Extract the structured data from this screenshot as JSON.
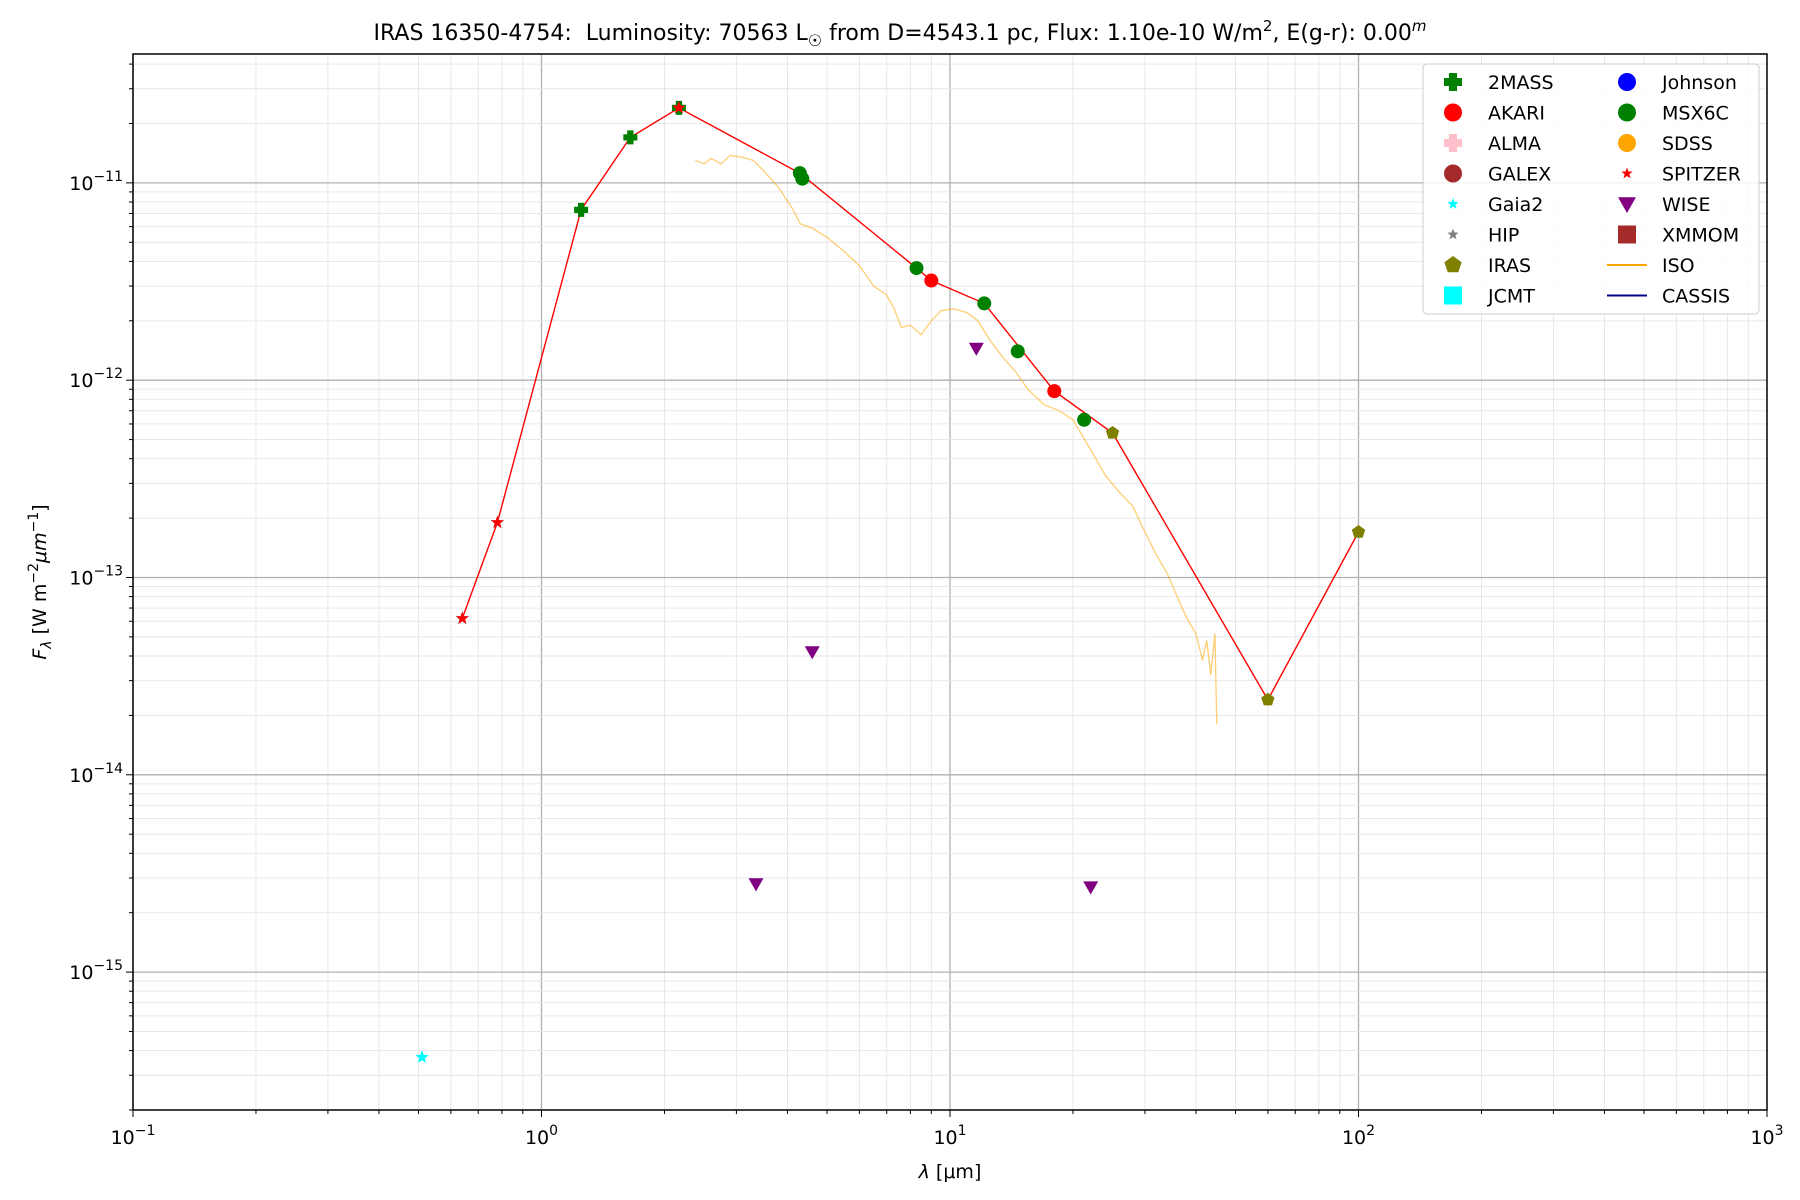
{
  "chart_data": {
    "type": "scatter",
    "title": {
      "object": "IRAS 16350-4754:",
      "lum_label": "Luminosity: 70563 L",
      "sun": "☉",
      "dist": " from D=4543.1 pc, Flux: 1.10e-10 W/m",
      "sup2": "2",
      "ext": ", E(g-r): 0.00",
      "supm": "m"
    },
    "xlabel": {
      "sym": "λ",
      "unit": " [μm]"
    },
    "ylabel": {
      "sym": "F",
      "sub": "λ",
      "pre": " [W m",
      "exp1": "−2",
      "mid": "μm",
      "exp2": "−1",
      "post": "]"
    },
    "xscale": "log",
    "yscale": "log",
    "xlim": [
      0.1,
      1000
    ],
    "ylim": [
      2e-16,
      4.5e-11
    ],
    "grid": true,
    "legend_placement": "top-right",
    "x_ticks": [
      {
        "base": "10",
        "exp": "−1",
        "v": 0.1
      },
      {
        "base": "10",
        "exp": "0",
        "v": 1
      },
      {
        "base": "10",
        "exp": "1",
        "v": 10
      },
      {
        "base": "10",
        "exp": "2",
        "v": 100
      },
      {
        "base": "10",
        "exp": "3",
        "v": 1000
      }
    ],
    "y_ticks": [
      {
        "base": "10",
        "exp": "−15",
        "v": 1e-15
      },
      {
        "base": "10",
        "exp": "−14",
        "v": 1e-14
      },
      {
        "base": "10",
        "exp": "−13",
        "v": 1e-13
      },
      {
        "base": "10",
        "exp": "−12",
        "v": 1e-12
      },
      {
        "base": "10",
        "exp": "−11",
        "v": 1e-11
      }
    ],
    "legend": [
      {
        "label": "2MASS",
        "marker": "plus",
        "color": "#008000"
      },
      {
        "label": "Johnson",
        "marker": "circle",
        "color": "#0000ff"
      },
      {
        "label": "AKARI",
        "marker": "circle",
        "color": "#ff0000"
      },
      {
        "label": "MSX6C",
        "marker": "circle",
        "color": "#008000"
      },
      {
        "label": "ALMA",
        "marker": "plus",
        "color": "#ffc0cb"
      },
      {
        "label": "SDSS",
        "marker": "circle",
        "color": "#ffa500"
      },
      {
        "label": "GALEX",
        "marker": "circle",
        "color": "#a52a2a"
      },
      {
        "label": "SPITZER",
        "marker": "star",
        "color": "#ff0000"
      },
      {
        "label": "Gaia2",
        "marker": "star",
        "color": "#00ffff"
      },
      {
        "label": "WISE",
        "marker": "triangle",
        "color": "#800080"
      },
      {
        "label": "HIP",
        "marker": "star",
        "color": "#808080"
      },
      {
        "label": "XMMOM",
        "marker": "square",
        "color": "#a52a2a"
      },
      {
        "label": "IRAS",
        "marker": "pentagon",
        "color": "#808000"
      },
      {
        "label": "ISO",
        "marker": "line",
        "color": "#ffa500"
      },
      {
        "label": "JCMT",
        "marker": "square",
        "color": "#00ffff"
      },
      {
        "label": "CASSIS",
        "marker": "line",
        "color": "#00008b"
      }
    ],
    "sed_line": {
      "color": "#ff0000",
      "points": [
        [
          0.64,
          6.2e-14
        ],
        [
          0.78,
          1.9e-13
        ],
        [
          1.25,
          7.3e-12
        ],
        [
          1.65,
          1.7e-11
        ],
        [
          2.17,
          2.4e-11
        ],
        [
          4.29,
          1.12e-11
        ],
        [
          8.28,
          3.7e-12
        ],
        [
          9.0,
          3.2e-12
        ],
        [
          12.13,
          2.45e-12
        ],
        [
          18.0,
          8.8e-13
        ],
        [
          25.0,
          5.4e-13
        ],
        [
          60.0,
          2.4e-14
        ],
        [
          100.0,
          1.7e-13
        ]
      ]
    },
    "series": [
      {
        "name": "2MASS",
        "marker": "plus",
        "color": "#008000",
        "points": [
          [
            1.25,
            7.3e-12
          ],
          [
            1.65,
            1.7e-11
          ],
          [
            2.17,
            2.4e-11
          ]
        ]
      },
      {
        "name": "AKARI",
        "marker": "circle",
        "color": "#ff0000",
        "points": [
          [
            9.0,
            3.2e-12
          ],
          [
            18.0,
            8.8e-13
          ]
        ]
      },
      {
        "name": "MSX6C",
        "marker": "circle",
        "color": "#008000",
        "points": [
          [
            4.29,
            1.12e-11
          ],
          [
            4.35,
            1.05e-11
          ],
          [
            8.28,
            3.7e-12
          ],
          [
            12.13,
            2.45e-12
          ],
          [
            14.65,
            1.4e-12
          ],
          [
            21.3,
            6.3e-13
          ]
        ]
      },
      {
        "name": "Gaia2",
        "marker": "star",
        "color": "#00ffff",
        "points": [
          [
            0.51,
            3.7e-16
          ],
          [
            0.64,
            6.2e-14
          ],
          [
            0.78,
            1.9e-13
          ]
        ]
      },
      {
        "name": "SPITZER",
        "marker": "star",
        "color": "#ff0000",
        "points": [
          [
            0.64,
            6.2e-14
          ],
          [
            0.78,
            1.9e-13
          ],
          [
            2.17,
            2.4e-11
          ]
        ]
      },
      {
        "name": "WISE",
        "marker": "triangle",
        "color": "#800080",
        "points": [
          [
            3.35,
            2.8e-15
          ],
          [
            4.6,
            4.2e-14
          ],
          [
            11.6,
            1.45e-12
          ],
          [
            22.1,
            2.7e-15
          ]
        ]
      },
      {
        "name": "IRAS",
        "marker": "pentagon",
        "color": "#808000",
        "points": [
          [
            25.0,
            5.4e-13
          ],
          [
            60.0,
            2.4e-14
          ],
          [
            100.0,
            1.7e-13
          ]
        ]
      }
    ],
    "iso_spectrum": {
      "color": "#ffa500",
      "points": [
        [
          2.38,
          1.3e-11
        ],
        [
          2.5,
          1.25e-11
        ],
        [
          2.6,
          1.33e-11
        ],
        [
          2.75,
          1.25e-11
        ],
        [
          2.9,
          1.38e-11
        ],
        [
          3.1,
          1.35e-11
        ],
        [
          3.3,
          1.3e-11
        ],
        [
          3.5,
          1.15e-11
        ],
        [
          3.8,
          9.5e-12
        ],
        [
          4.1,
          7.5e-12
        ],
        [
          4.3,
          6.2e-12
        ],
        [
          4.6,
          5.9e-12
        ],
        [
          5.0,
          5.3e-12
        ],
        [
          5.5,
          4.5e-12
        ],
        [
          6.0,
          3.8e-12
        ],
        [
          6.5,
          3e-12
        ],
        [
          7.0,
          2.7e-12
        ],
        [
          7.3,
          2.3e-12
        ],
        [
          7.6,
          1.85e-12
        ],
        [
          8.0,
          1.9e-12
        ],
        [
          8.5,
          1.7e-12
        ],
        [
          9.0,
          2e-12
        ],
        [
          9.5,
          2.25e-12
        ],
        [
          10.2,
          2.3e-12
        ],
        [
          11.0,
          2.2e-12
        ],
        [
          11.7,
          2e-12
        ],
        [
          12.5,
          1.6e-12
        ],
        [
          13.5,
          1.3e-12
        ],
        [
          14.5,
          1.1e-12
        ],
        [
          15.5,
          9e-13
        ],
        [
          17.0,
          7.5e-13
        ],
        [
          18.5,
          7e-13
        ],
        [
          20.0,
          6.3e-13
        ],
        [
          22.0,
          4.5e-13
        ],
        [
          24.0,
          3.3e-13
        ],
        [
          26.0,
          2.7e-13
        ],
        [
          28.0,
          2.3e-13
        ],
        [
          30.0,
          1.7e-13
        ],
        [
          32.0,
          1.3e-13
        ],
        [
          34.0,
          1.05e-13
        ],
        [
          36.0,
          8e-14
        ],
        [
          38.0,
          6.2e-14
        ],
        [
          40.0,
          5.2e-14
        ],
        [
          41.5,
          3.8e-14
        ],
        [
          42.5,
          4.8e-14
        ],
        [
          43.5,
          3.2e-14
        ],
        [
          44.5,
          5.2e-14
        ],
        [
          45.0,
          1.8e-14
        ]
      ]
    }
  }
}
